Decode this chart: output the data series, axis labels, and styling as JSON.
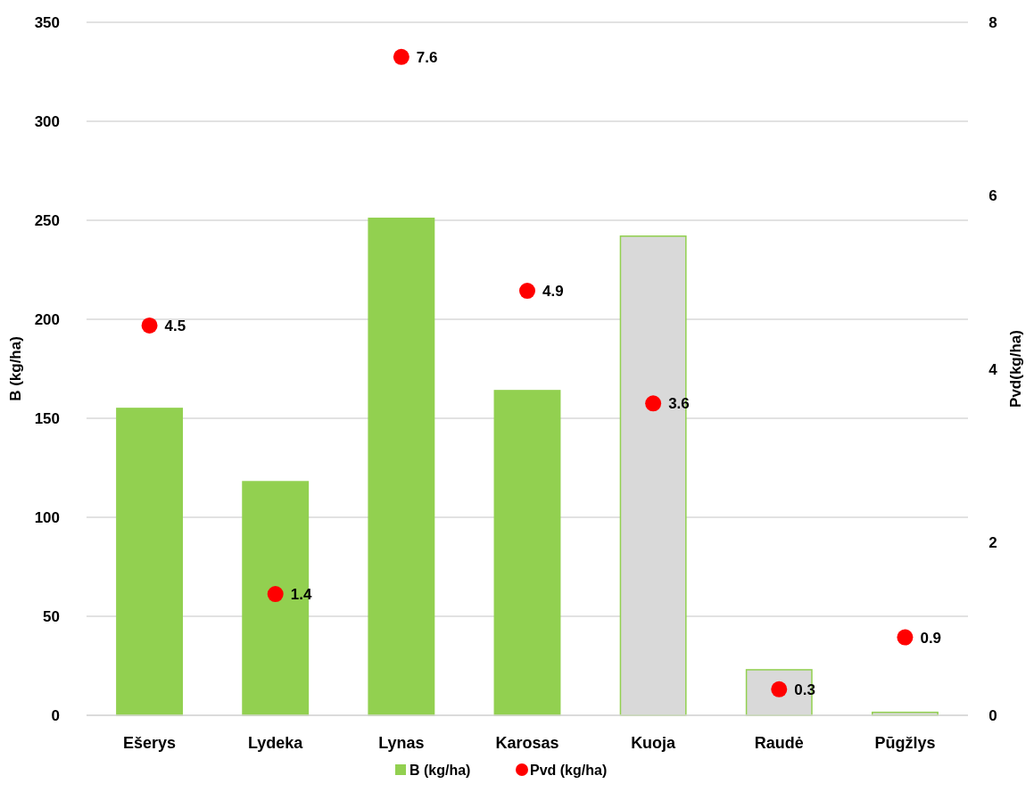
{
  "chart_data": {
    "type": "bar",
    "ylabel": "B (kg/ha)",
    "y2label": "Pvd(kg/ha)",
    "categories": [
      "Ešerys",
      "Lydeka",
      "Lynas",
      "Karosas",
      "Kuoja",
      "Raudė",
      "Pūgžlys"
    ],
    "series": [
      {
        "name": "B (kg/ha)",
        "color": "#92d050",
        "colors": [
          "#92d050",
          "#92d050",
          "#92d050",
          "#92d050",
          "#d9d9d9",
          "#d9d9d9",
          "#d9d9d9"
        ],
        "values": [
          155,
          118,
          251,
          164,
          242,
          23,
          1.5
        ]
      },
      {
        "name": "Pvd (kg/ha)",
        "type": "scatter",
        "axis": "y2",
        "color": "#ff0000",
        "marker": "circle",
        "data_labels": true,
        "values": [
          4.5,
          1.4,
          7.6,
          4.9,
          3.6,
          0.3,
          0.9
        ]
      }
    ],
    "ylim": [
      0,
      350
    ],
    "yticks": [
      0,
      50,
      100,
      150,
      200,
      250,
      300,
      350
    ],
    "y2lim": [
      0,
      8
    ],
    "y2ticks": [
      0,
      2,
      4,
      6,
      8
    ],
    "grid": "y",
    "legend": "bottom"
  }
}
